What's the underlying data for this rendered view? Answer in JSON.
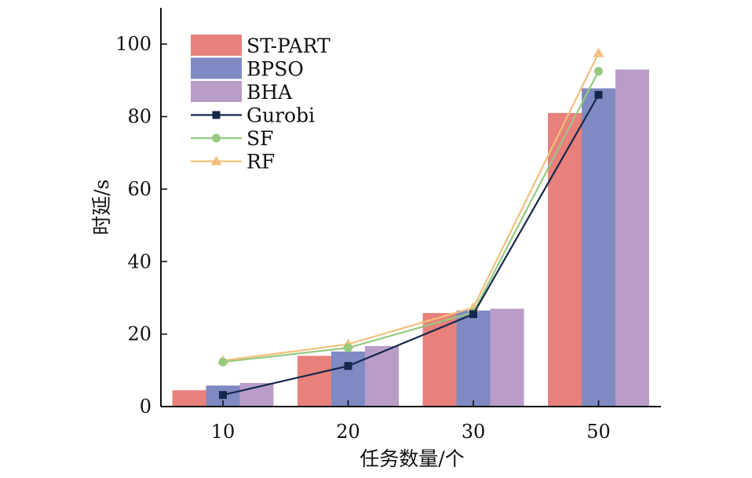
{
  "chart_data": {
    "type": "bar",
    "title": "",
    "xlabel": "任务数量/个",
    "ylabel": "时延/s",
    "categories": [
      "10",
      "20",
      "30",
      "50"
    ],
    "ylim": [
      0,
      110
    ],
    "yticks": [
      0,
      20,
      40,
      60,
      80,
      100
    ],
    "grid": false,
    "legend_position": "top-left",
    "bar_series": [
      {
        "name": "ST-PART",
        "color": "#e8807b",
        "values": [
          4.5,
          14.0,
          25.8,
          81.0
        ]
      },
      {
        "name": "BPSO",
        "color": "#7f8ac3",
        "values": [
          5.8,
          15.2,
          26.5,
          87.8
        ]
      },
      {
        "name": "BHA",
        "color": "#b99dc8",
        "values": [
          6.5,
          16.7,
          27.0,
          93.0
        ]
      }
    ],
    "line_series": [
      {
        "name": "Gurobi",
        "color": "#14284b",
        "marker": "square",
        "values": [
          3.2,
          11.2,
          25.5,
          86.0
        ]
      },
      {
        "name": "SF",
        "color": "#95c97f",
        "marker": "circle",
        "values": [
          12.3,
          16.2,
          26.0,
          92.5
        ]
      },
      {
        "name": "RF",
        "color": "#f2c07e",
        "marker": "triangle",
        "values": [
          12.7,
          17.2,
          27.3,
          97.5
        ]
      }
    ]
  }
}
